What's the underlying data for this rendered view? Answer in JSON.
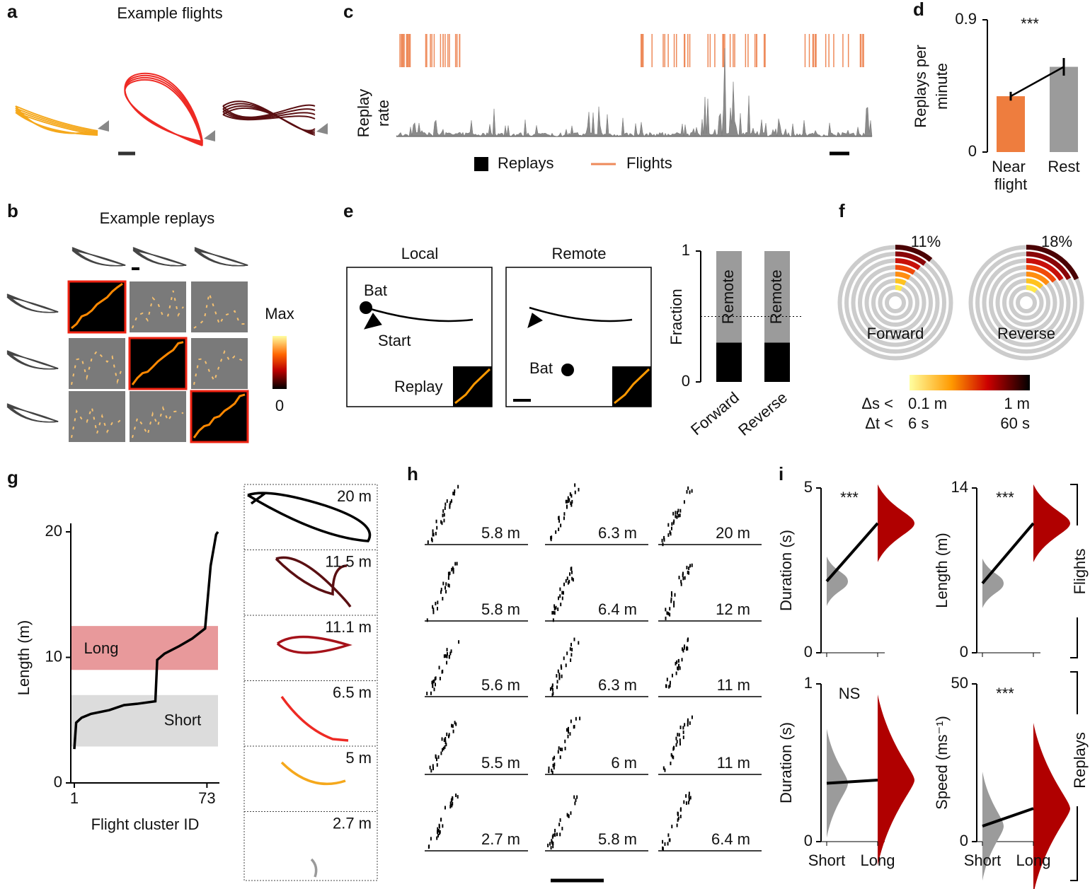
{
  "panel_labels": [
    "a",
    "b",
    "c",
    "d",
    "e",
    "f",
    "g",
    "h",
    "i"
  ],
  "a": {
    "title": "Example flights"
  },
  "b": {
    "title": "Example replays",
    "colorbar": {
      "max": "Max",
      "min": 0
    }
  },
  "c": {
    "ylabel": [
      "Replay",
      "rate"
    ],
    "legend": [
      "Replays",
      "Flights"
    ],
    "legend_colors": [
      "#000000",
      "#ee8a5a"
    ]
  },
  "d": {
    "type": "bar",
    "stars": "***",
    "ylabel": [
      "Replays per",
      "minute"
    ],
    "categories": [
      "Near flight",
      "Rest"
    ],
    "values": [
      0.38,
      0.58
    ],
    "errors": [
      0.03,
      0.06
    ],
    "colors": [
      "#ee7d3e",
      "#9b9b9b"
    ],
    "ylim": [
      0,
      0.9
    ],
    "yticks": [
      0,
      0.9
    ]
  },
  "e": {
    "titles": [
      "Local",
      "Remote"
    ],
    "local": {
      "bat": "Bat",
      "start": "Start",
      "replay": "Replay"
    },
    "remote": {
      "bat": "Bat"
    },
    "bars": {
      "ylabel": "Fraction",
      "categories": [
        "Forward",
        "Reverse"
      ],
      "local": [
        0.3,
        0.3
      ],
      "remote": [
        0.7,
        0.7
      ],
      "segment_label": "Remote",
      "ylim": [
        0,
        1
      ],
      "yticks": [
        0,
        1
      ],
      "reference": 0.5
    }
  },
  "f": {
    "values": [
      11,
      18
    ],
    "value_labels": [
      "11%",
      "18%"
    ],
    "labels": [
      "Forward",
      "Reverse"
    ],
    "colorbar": [
      {
        "label": "Δs <",
        "min": "0.1 m",
        "max": "1 m"
      },
      {
        "label": "Δt <",
        "min": "6 s",
        "max": "60 s"
      }
    ]
  },
  "g": {
    "ylabel": "Length (m)",
    "xlabel": "Flight cluster ID",
    "xlim": [
      1,
      79
    ],
    "xticks": [
      1,
      73
    ],
    "ylim": [
      0,
      20
    ],
    "yticks": [
      0,
      10,
      20
    ],
    "bands": [
      {
        "name": "Long",
        "range": [
          9,
          12.5
        ],
        "color": "#e8999b"
      },
      {
        "name": "Short",
        "range": [
          2.9,
          7
        ],
        "color": "#dcdcdc"
      }
    ],
    "x": [
      1,
      2,
      5,
      10,
      20,
      28,
      35,
      45,
      46,
      50,
      58,
      65,
      72,
      75,
      78,
      79
    ],
    "values": [
      2.7,
      4.8,
      5.2,
      5.5,
      5.8,
      6.2,
      6.3,
      6.5,
      9.8,
      10.3,
      10.9,
      11.5,
      12.3,
      17.3,
      19.8,
      20
    ],
    "examples": [
      {
        "label": "20 m",
        "color": "#000000"
      },
      {
        "label": "11.5 m",
        "color": "#5a0f12"
      },
      {
        "label": "11.1 m",
        "color": "#a5121a"
      },
      {
        "label": "6.5 m",
        "color": "#ee2a24"
      },
      {
        "label": "5 m",
        "color": "#f5a81c"
      },
      {
        "label": "2.7 m",
        "color": "#9a9a9a"
      }
    ]
  },
  "h": {
    "labels": [
      [
        "5.8 m",
        "6.3 m",
        "20 m"
      ],
      [
        "5.8 m",
        "6.4 m",
        "12 m"
      ],
      [
        "5.6 m",
        "6.3 m",
        "11 m"
      ],
      [
        "5.5 m",
        "6 m",
        "11 m"
      ],
      [
        "2.7 m",
        "5.8 m",
        "6.4 m"
      ]
    ]
  },
  "i": {
    "categories": [
      "Short",
      "Long"
    ],
    "groups": [
      "Flights",
      "Replays"
    ],
    "plots": [
      {
        "ylabel": "Duration (s)",
        "stars": "***",
        "ylim": [
          0,
          5
        ],
        "yticks": [
          0,
          5
        ],
        "means": [
          2.17,
          3.93
        ]
      },
      {
        "ylabel": "Length (m)",
        "stars": "***",
        "ylim": [
          0,
          14
        ],
        "yticks": [
          0,
          14
        ],
        "means": [
          5.9,
          11
        ]
      },
      {
        "ylabel": "Duration (s)",
        "stars": "NS",
        "ylim": [
          0,
          1
        ],
        "yticks": [
          0,
          1
        ],
        "means": [
          0.37,
          0.39
        ]
      },
      {
        "ylabel": "Speed (ms⁻¹)",
        "stars": "***",
        "ylim": [
          0,
          50
        ],
        "yticks": [
          0,
          50
        ],
        "means": [
          4.9,
          10.5
        ]
      }
    ]
  }
}
